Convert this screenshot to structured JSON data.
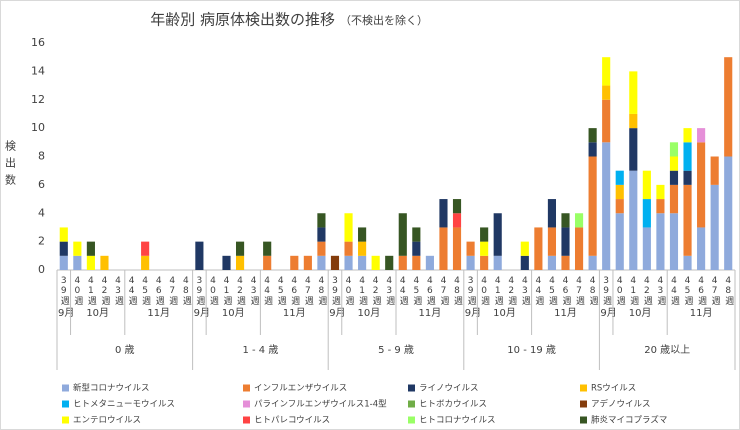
{
  "chart_data": {
    "type": "stacked_bar",
    "title": "年齢別 病原体検出数の推移",
    "subtitle": "（不検出を除く）",
    "y_label": "検出数",
    "ylim": [
      0,
      16
    ],
    "yticks": [
      0,
      2,
      4,
      6,
      8,
      10,
      12,
      14,
      16
    ],
    "groups": [
      {
        "name": "0 歳",
        "months": [
          "9月",
          "10月",
          "11月"
        ]
      },
      {
        "name": "1 - 4 歳",
        "months": [
          "9月",
          "10月",
          "11月"
        ]
      },
      {
        "name": "5 - 9 歳",
        "months": [
          "9月",
          "10月",
          "11月"
        ]
      },
      {
        "name": "10 - 19 歳",
        "months": [
          "9月",
          "10月",
          "11月"
        ]
      },
      {
        "name": "20 歳以上",
        "months": [
          "9月",
          "10月",
          "11月"
        ]
      }
    ],
    "categories": [
      "39週",
      "40週",
      "41週",
      "42週",
      "43週",
      "44週",
      "45週",
      "46週",
      "47週",
      "48週",
      "39週",
      "40週",
      "41週",
      "42週",
      "43週",
      "44週",
      "45週",
      "46週",
      "47週",
      "48週",
      "39週",
      "40週",
      "41週",
      "42週",
      "43週",
      "44週",
      "45週",
      "46週",
      "47週",
      "48週",
      "39週",
      "40週",
      "41週",
      "42週",
      "43週",
      "44週",
      "45週",
      "46週",
      "47週",
      "48週",
      "39週",
      "40週",
      "41週",
      "42週",
      "43週",
      "44週",
      "45週",
      "46週",
      "47週",
      "48週"
    ],
    "series": [
      {
        "name": "新型コロナウイルス",
        "color": "#8faadc",
        "values": [
          1,
          1,
          0,
          0,
          0,
          0,
          0,
          0,
          0,
          0,
          0,
          0,
          0,
          0,
          0,
          0,
          0,
          0,
          0,
          1,
          0,
          1,
          1,
          0,
          0,
          0,
          0,
          1,
          0,
          0,
          1,
          0,
          1,
          0,
          0,
          0,
          1,
          0,
          0,
          1,
          9,
          4,
          7,
          3,
          4,
          4,
          1,
          3,
          6,
          8
        ]
      },
      {
        "name": "インフルエンザウイルス",
        "color": "#ed7d31",
        "values": [
          0,
          0,
          0,
          0,
          0,
          0,
          0,
          0,
          0,
          0,
          0,
          0,
          0,
          0,
          0,
          1,
          0,
          1,
          1,
          1,
          0,
          1,
          0,
          0,
          0,
          1,
          1,
          0,
          3,
          3,
          1,
          1,
          0,
          0,
          0,
          3,
          2,
          1,
          3,
          7,
          3,
          1,
          0,
          0,
          1,
          2,
          5,
          6,
          2,
          7
        ]
      },
      {
        "name": "ライノウイルス",
        "color": "#203864",
        "values": [
          1,
          0,
          0,
          0,
          0,
          0,
          0,
          0,
          0,
          0,
          2,
          0,
          1,
          0,
          0,
          0,
          0,
          0,
          0,
          1,
          0,
          0,
          0,
          0,
          0,
          0,
          1,
          0,
          2,
          0,
          0,
          0,
          3,
          0,
          1,
          0,
          2,
          2,
          0,
          1,
          0,
          0,
          3,
          0,
          0,
          1,
          1,
          0,
          0,
          0
        ]
      },
      {
        "name": "RSウイルス",
        "color": "#ffc000",
        "values": [
          0,
          0,
          0,
          1,
          0,
          0,
          1,
          0,
          0,
          0,
          0,
          0,
          0,
          1,
          0,
          0,
          0,
          0,
          0,
          0,
          0,
          0,
          1,
          0,
          0,
          0,
          0,
          0,
          0,
          0,
          0,
          0,
          0,
          0,
          0,
          0,
          0,
          0,
          0,
          0,
          1,
          1,
          1,
          0,
          0,
          0,
          0,
          0,
          0,
          0
        ]
      },
      {
        "name": "ヒトメタニューモウイルス",
        "color": "#00b0f0",
        "values": [
          0,
          0,
          0,
          0,
          0,
          0,
          0,
          0,
          0,
          0,
          0,
          0,
          0,
          0,
          0,
          0,
          0,
          0,
          0,
          0,
          0,
          0,
          0,
          0,
          0,
          0,
          0,
          0,
          0,
          0,
          0,
          0,
          0,
          0,
          0,
          0,
          0,
          0,
          0,
          0,
          0,
          1,
          0,
          2,
          0,
          0,
          2,
          0,
          0,
          0
        ]
      },
      {
        "name": "パラインフルエンザウイルス1-4型",
        "color": "#e58fd8",
        "values": [
          0,
          0,
          0,
          0,
          0,
          0,
          0,
          0,
          0,
          0,
          0,
          0,
          0,
          0,
          0,
          0,
          0,
          0,
          0,
          0,
          0,
          0,
          0,
          0,
          0,
          0,
          0,
          0,
          0,
          0,
          0,
          0,
          0,
          0,
          0,
          0,
          0,
          0,
          0,
          0,
          0,
          0,
          0,
          0,
          0,
          0,
          0,
          1,
          0,
          0
        ]
      },
      {
        "name": "ヒトボカウイルス",
        "color": "#70ad47",
        "values": [
          0,
          0,
          0,
          0,
          0,
          0,
          0,
          0,
          0,
          0,
          0,
          0,
          0,
          0,
          0,
          0,
          0,
          0,
          0,
          0,
          0,
          0,
          0,
          0,
          0,
          0,
          0,
          0,
          0,
          0,
          0,
          0,
          0,
          0,
          0,
          0,
          0,
          0,
          0,
          0,
          0,
          0,
          0,
          0,
          0,
          0,
          0,
          0,
          0,
          0
        ]
      },
      {
        "name": "アデノウイルス",
        "color": "#843c0c",
        "values": [
          0,
          0,
          0,
          0,
          0,
          0,
          0,
          0,
          0,
          0,
          0,
          0,
          0,
          0,
          0,
          0,
          0,
          0,
          0,
          0,
          1,
          0,
          0,
          0,
          0,
          0,
          0,
          0,
          0,
          0,
          0,
          0,
          0,
          0,
          0,
          0,
          0,
          0,
          0,
          0,
          0,
          0,
          0,
          0,
          0,
          0,
          0,
          0,
          0,
          0
        ]
      },
      {
        "name": "エンテロウイルス",
        "color": "#ffff00",
        "values": [
          1,
          1,
          1,
          0,
          0,
          0,
          0,
          0,
          0,
          0,
          0,
          0,
          0,
          0,
          0,
          0,
          0,
          0,
          0,
          0,
          0,
          2,
          0,
          1,
          0,
          0,
          0,
          0,
          0,
          0,
          0,
          1,
          0,
          0,
          1,
          0,
          0,
          0,
          0,
          0,
          2,
          0,
          3,
          2,
          1,
          1,
          1,
          0,
          0,
          0
        ]
      },
      {
        "name": "ヒトパレコウイルス",
        "color": "#ff4343",
        "values": [
          0,
          0,
          0,
          0,
          0,
          0,
          1,
          0,
          0,
          0,
          0,
          0,
          0,
          0,
          0,
          0,
          0,
          0,
          0,
          0,
          0,
          0,
          0,
          0,
          0,
          0,
          0,
          0,
          0,
          1,
          0,
          0,
          0,
          0,
          0,
          0,
          0,
          0,
          0,
          0,
          0,
          0,
          0,
          0,
          0,
          0,
          0,
          0,
          0,
          0
        ]
      },
      {
        "name": "ヒトコロナウイルス",
        "color": "#99ff66",
        "values": [
          0,
          0,
          0,
          0,
          0,
          0,
          0,
          0,
          0,
          0,
          0,
          0,
          0,
          0,
          0,
          0,
          0,
          0,
          0,
          0,
          0,
          0,
          0,
          0,
          0,
          0,
          0,
          0,
          0,
          0,
          0,
          0,
          0,
          0,
          0,
          0,
          0,
          0,
          1,
          0,
          0,
          0,
          0,
          0,
          0,
          1,
          0,
          0,
          0,
          0
        ]
      },
      {
        "name": "肺炎マイコプラズマ",
        "color": "#375623",
        "values": [
          0,
          0,
          1,
          0,
          0,
          0,
          0,
          0,
          0,
          0,
          0,
          0,
          0,
          1,
          0,
          1,
          0,
          0,
          0,
          1,
          0,
          0,
          1,
          0,
          1,
          3,
          1,
          0,
          0,
          1,
          0,
          1,
          0,
          0,
          0,
          0,
          0,
          1,
          0,
          1,
          0,
          0,
          0,
          0,
          0,
          0,
          0,
          0,
          0,
          0
        ]
      }
    ],
    "grid": false
  }
}
